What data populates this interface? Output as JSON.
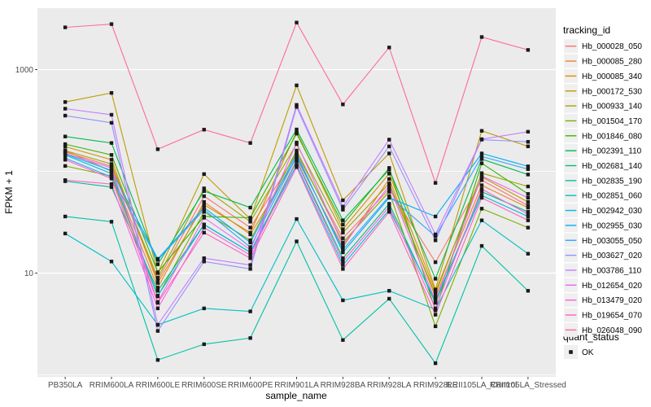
{
  "chart_data": {
    "type": "line",
    "title": "",
    "xlabel": "sample_name",
    "ylabel": "FPKM + 1",
    "y_scale": "log10",
    "ylim": [
      0.95,
      4000
    ],
    "grid": {
      "major": [
        10,
        1000
      ],
      "minor": [
        1,
        100
      ],
      "background": "on"
    },
    "legend_position": "right",
    "yticks": [
      {
        "label": "1000",
        "value": 1000
      },
      {
        "label": "10",
        "value": 10
      }
    ],
    "categories": [
      "PB350LA",
      "RRIM600LA",
      "RRIM600LE",
      "RRIM600SE",
      "RRIM600PE",
      "RRIM901LA",
      "RRIM928BA",
      "RRIM928LA",
      "RRIM928LE",
      "RRII105LA_Control",
      "RRII105LA_Stressed"
    ],
    "series": [
      {
        "name": "Hb_000028_050",
        "color": "#F8766D",
        "values": [
          155,
          112,
          8.5,
          57,
          28,
          150,
          22,
          67,
          12.8,
          82,
          46
        ]
      },
      {
        "name": "Hb_000085_280",
        "color": "#EA8331",
        "values": [
          160,
          100,
          7.2,
          50,
          24,
          135,
          18,
          84,
          5.8,
          73,
          44
        ]
      },
      {
        "name": "Hb_000085_340",
        "color": "#D89000",
        "values": [
          175,
          130,
          8.0,
          47,
          25,
          245,
          27,
          95,
          6.6,
          88,
          50
        ]
      },
      {
        "name": "Hb_000172_530",
        "color": "#C09B00",
        "values": [
          480,
          590,
          10.0,
          94,
          34,
          700,
          52,
          150,
          6.9,
          250,
          176
        ]
      },
      {
        "name": "Hb_000933_140",
        "color": "#A3A500",
        "values": [
          160,
          118,
          9.0,
          68,
          32,
          185,
          25,
          76,
          6.2,
          96,
          71
        ]
      },
      {
        "name": "Hb_001504_170",
        "color": "#7CAE00",
        "values": [
          113,
          90,
          5.9,
          40,
          21,
          160,
          20,
          63,
          3.0,
          43,
          28
        ]
      },
      {
        "name": "Hb_001846_080",
        "color": "#39B600",
        "values": [
          185,
          145,
          10.2,
          36,
          35,
          235,
          30,
          108,
          4.3,
          120,
          60
        ]
      },
      {
        "name": "Hb_002391_110",
        "color": "#00BB4E",
        "values": [
          220,
          190,
          12.2,
          64,
          44,
          258,
          33,
          104,
          8.8,
          132,
          93
        ]
      },
      {
        "name": "Hb_002681_140",
        "color": "#00BF7D",
        "values": [
          80,
          70,
          6.7,
          30,
          16,
          128,
          14,
          48,
          5.1,
          63,
          40
        ]
      },
      {
        "name": "Hb_002835_190",
        "color": "#00C1A3",
        "values": [
          36,
          32,
          1.4,
          2.0,
          2.3,
          20.5,
          2.2,
          5.6,
          1.3,
          18.5,
          6.7
        ]
      },
      {
        "name": "Hb_002851_060",
        "color": "#00BFC4",
        "values": [
          24.5,
          13,
          3.1,
          4.5,
          4.2,
          34,
          5.4,
          6.7,
          4.4,
          33,
          15.5
        ]
      },
      {
        "name": "Hb_002942_030",
        "color": "#00BAE0",
        "values": [
          145,
          95,
          6.0,
          30,
          16,
          115,
          12,
          42,
          5.4,
          58,
          36
        ]
      },
      {
        "name": "Hb_002955_030",
        "color": "#00B0F6",
        "values": [
          148,
          102,
          13.8,
          44,
          20,
          148,
          16,
          55,
          36,
          150,
          112
        ]
      },
      {
        "name": "Hb_003055_050",
        "color": "#35A2FF",
        "values": [
          135,
          88,
          13.5,
          42,
          18,
          140,
          17,
          57,
          23,
          140,
          105
        ]
      },
      {
        "name": "Hb_003627_020",
        "color": "#9590FF",
        "values": [
          353,
          300,
          2.7,
          13,
          11,
          430,
          42,
          176,
          21,
          205,
          195
        ]
      },
      {
        "name": "Hb_003786_110",
        "color": "#C77CFF",
        "values": [
          413,
          360,
          3.1,
          14,
          12,
          450,
          45,
          205,
          24,
          207,
          245
        ]
      },
      {
        "name": "Hb_012654_020",
        "color": "#E76BF3",
        "values": [
          150,
          108,
          5.2,
          35,
          17,
          192,
          19,
          72,
          5.3,
          90,
          55
        ]
      },
      {
        "name": "Hb_013479_020",
        "color": "#FA62DB",
        "values": [
          82,
          75,
          4.5,
          28,
          15,
          125,
          13,
          45,
          4.5,
          67,
          38
        ]
      },
      {
        "name": "Hb_019654_070",
        "color": "#FF62BC",
        "values": [
          130,
          85,
          5.1,
          25,
          14,
          110,
          11,
          40,
          3.9,
          55,
          33
        ]
      },
      {
        "name": "Hb_026048_090",
        "color": "#FF6A98",
        "values": [
          2600,
          2800,
          165,
          257,
          190,
          2900,
          455,
          1650,
          77,
          2090,
          1560
        ]
      }
    ]
  },
  "legend": {
    "tracking_title": "tracking_id",
    "quant_title": "quant_status",
    "quant_items": [
      {
        "label": "OK",
        "marker": "black-square"
      }
    ]
  },
  "colors": {
    "panel_bg": "#EBEBEB",
    "grid": "#FFFFFF",
    "point": "#1A1A1A",
    "tick_mark": "#333333",
    "tick_text": "#4D4D4D",
    "legend_key_bg": "#EFEFEF"
  }
}
